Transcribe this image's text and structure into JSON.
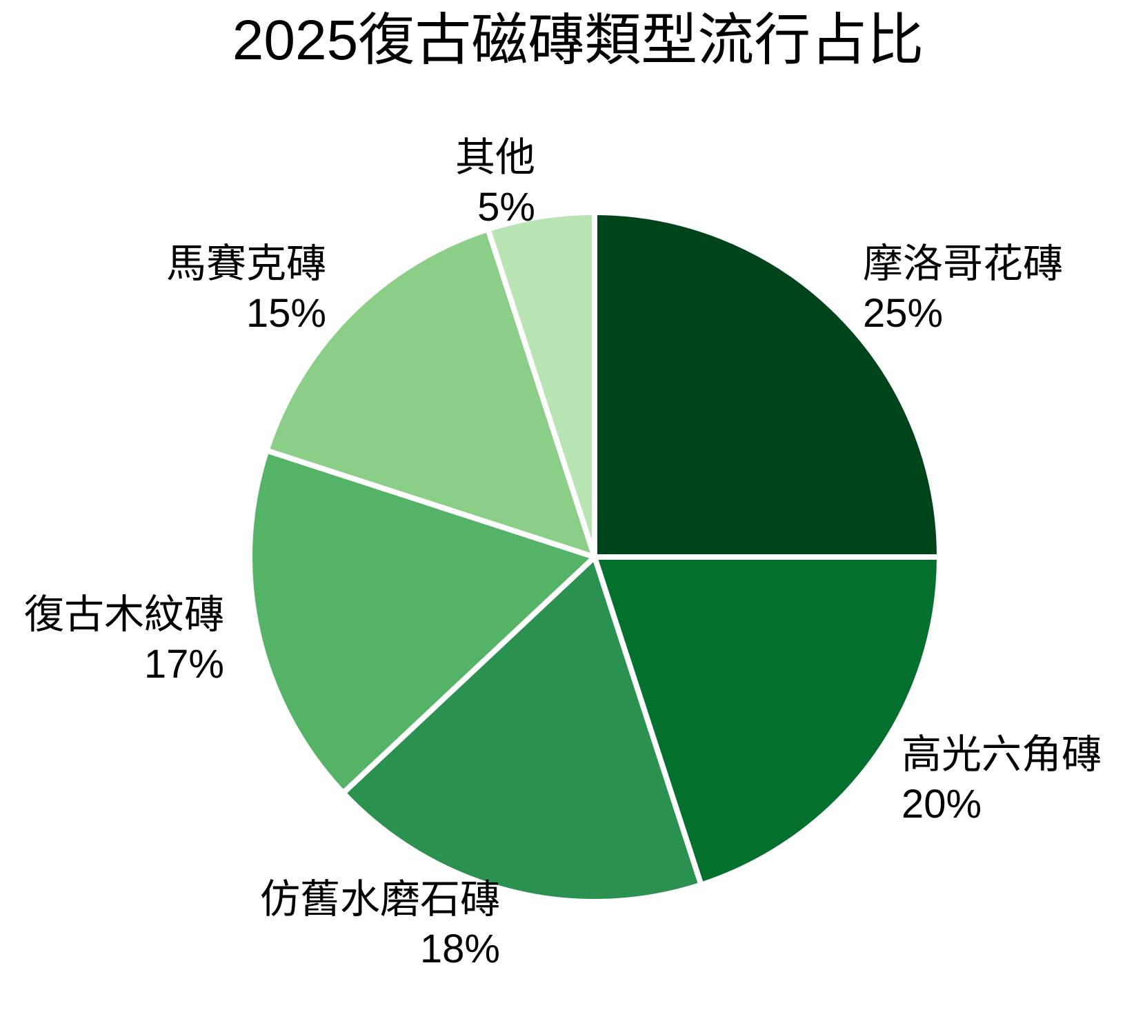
{
  "chart_data": {
    "type": "pie",
    "title": "2025復古磁磚類型流行占比",
    "categories": [
      "摩洛哥花磚",
      "高光六角磚",
      "仿舊水磨石磚",
      "復古木紋磚",
      "馬賽克磚",
      "其他"
    ],
    "values": [
      25,
      20,
      18,
      17,
      15,
      5
    ],
    "unit": "%",
    "colors": [
      "#00441b",
      "#03702e",
      "#2a9150",
      "#54b366",
      "#8ace87",
      "#b8e3b2"
    ],
    "slice_border_color": "#ffffff",
    "text_color": "#000000",
    "background_color": "#ffffff",
    "start_angle": "12-o-clock",
    "direction": "clockwise",
    "label_position": "outside",
    "legend": "none"
  }
}
